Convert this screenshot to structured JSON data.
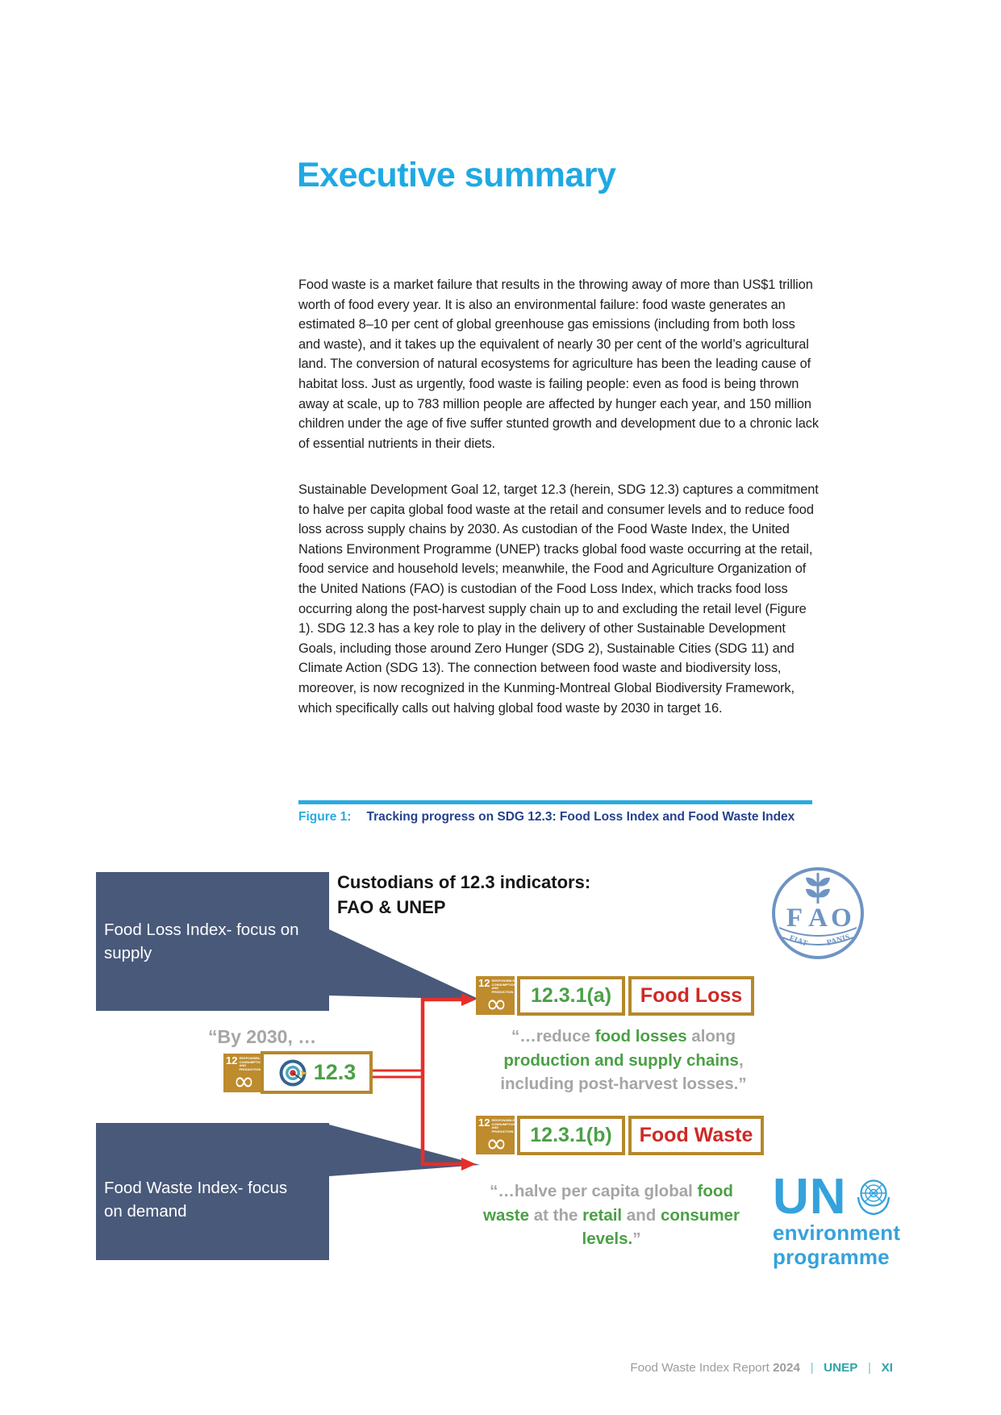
{
  "title": "Executive summary",
  "paragraphs": [
    "Food waste is a market failure that results in the throwing away of more than US$1 trillion worth of food every year. It is also an environmental failure: food waste generates an estimated 8–10 per cent of global greenhouse gas emissions (including from both loss and waste), and it takes up the equivalent of nearly 30 per cent of the world’s agricultural land. The conversion of natural ecosystems for agriculture has been the leading cause of habitat loss. Just as urgently, food waste is failing people: even as food is being thrown away at scale, up to 783 million people are affected by hunger each year, and 150 million children under the age of five suffer stunted growth and development due to a chronic lack of essential nutrients in their diets.",
    "Sustainable Development Goal 12, target 12.3 (herein, SDG 12.3) captures a commitment to halve per capita global food waste at the retail and consumer levels and to reduce food loss across supply chains by 2030. As custodian of the Food Waste Index, the United Nations Environment Programme (UNEP) tracks global food waste occurring at the retail, food service and household levels; meanwhile, the Food and Agriculture Organization of the United Nations (FAO) is custodian of the Food Loss Index, which tracks food loss occurring along the post-harvest supply chain up to and excluding the retail level (Figure 1). SDG 12.3 has a key role to play in the delivery of other Sustainable Development Goals, including those around Zero Hunger (SDG 2), Sustainable Cities (SDG 11) and Climate Action (SDG 13). The connection between food waste and biodiversity loss, moreover, is now recognized in the Kunming-Montreal Global Biodiversity Framework, which specifically calls out halving global food waste by 2030 in target 16."
  ],
  "figure": {
    "label": "Figure 1:",
    "caption": "Tracking progress on SDG 12.3: Food Loss Index and Food Waste Index"
  },
  "diagram": {
    "heading_line1": "Custodians of 12.3 indicators:",
    "heading_line2": "FAO & UNEP",
    "box_supply_lines": [
      "Food Loss Index- focus on",
      "supply"
    ],
    "box_demand_lines": [
      "Food Waste Index- focus",
      "on demand"
    ],
    "by2030": "“By 2030, …",
    "sdg": {
      "number": "12",
      "caption_lines": [
        "RESPONSIBLE",
        "CONSUMPTION",
        "AND PRODUCTION"
      ],
      "symbol": "∞"
    },
    "target_label": "12.3",
    "row_loss": {
      "indicator": "12.3.1(a)",
      "name": "Food Loss"
    },
    "row_waste": {
      "indicator": "12.3.1(b)",
      "name": "Food Waste"
    },
    "quote_loss_lines": [
      [
        {
          "t": "“…reduce ",
          "c": "gray"
        },
        {
          "t": "food losses",
          "c": "green"
        },
        {
          "t": " along",
          "c": "gray"
        }
      ],
      [
        {
          "t": "production and supply chains",
          "c": "green"
        },
        {
          "t": ",",
          "c": "gray"
        }
      ],
      [
        {
          "t": "including post-harvest losses.”",
          "c": "gray"
        }
      ]
    ],
    "quote_waste_lines": [
      [
        {
          "t": "“…halve per capita global ",
          "c": "gray"
        },
        {
          "t": "food",
          "c": "green"
        }
      ],
      [
        {
          "t": "waste",
          "c": "green"
        },
        {
          "t": " at the ",
          "c": "gray"
        },
        {
          "t": "retail",
          "c": "green"
        },
        {
          "t": " and ",
          "c": "gray"
        },
        {
          "t": "consumer",
          "c": "green"
        }
      ],
      [
        {
          "t": "levels.",
          "c": "green"
        },
        {
          "t": "”",
          "c": "gray"
        }
      ]
    ],
    "fao_logo": {
      "letters": "FAO",
      "banner_left": "FIAT",
      "banner_right": "PANIS"
    },
    "unep_logo": {
      "un": "UN",
      "line1": "environment",
      "line2": "programme"
    }
  },
  "footer": {
    "segments": [
      {
        "t": "Food Waste Index Report ",
        "c": "fg"
      },
      {
        "t": "2024",
        "c": "fgb"
      },
      {
        "t": "   |   ",
        "c": "teal"
      },
      {
        "t": "UNEP",
        "c": "tealb"
      },
      {
        "t": "   |   ",
        "c": "teal"
      },
      {
        "t": "XI",
        "c": "tealb"
      }
    ]
  },
  "colors": {
    "title_blue": "#1FA9E3",
    "figure_rule_blue": "#29ABE2",
    "caption_navy": "#25418F",
    "slate_box": "#48597A",
    "sdg_gold": "#BE8B2D",
    "green": "#4BA046",
    "red": "#CE2A26",
    "arrow_red": "#E62E29",
    "quote_gray": "#A5A5A5",
    "fao_blue": "#6E94C3",
    "unep_blue": "#35A2DB",
    "footer_teal": "#2FA4A8"
  }
}
